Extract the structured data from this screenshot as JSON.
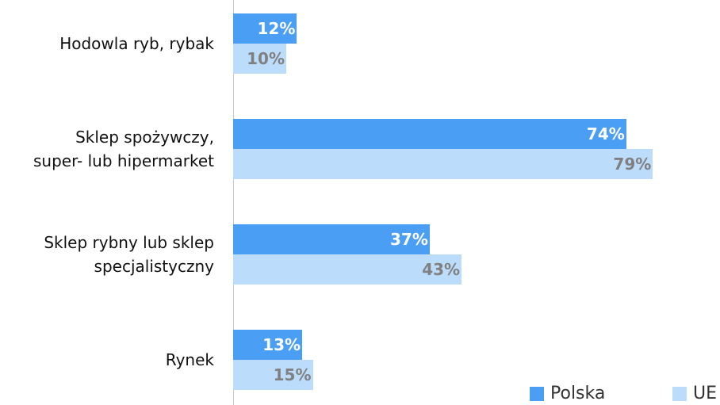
{
  "chart_data": {
    "type": "bar",
    "orientation": "horizontal",
    "categories": [
      "Hodowla ryb, rybak",
      "Sklep spożywczy,\nsuper- lub hipermarket",
      "Sklep rybny lub sklep\nspecjalistyczny",
      "Rynek"
    ],
    "series": [
      {
        "name": "Polska",
        "color": "#4a9ff5",
        "label_color": "#ffffff",
        "values": [
          12,
          74,
          37,
          13
        ],
        "value_labels": [
          "12%",
          "74%",
          "37%",
          "13%"
        ]
      },
      {
        "name": "UE",
        "color": "#bcdcfc",
        "label_color": "#808080",
        "values": [
          10,
          79,
          43,
          15
        ],
        "value_labels": [
          "10%",
          "79%",
          "43%",
          "15%"
        ]
      }
    ],
    "legend": "bottom-right"
  }
}
